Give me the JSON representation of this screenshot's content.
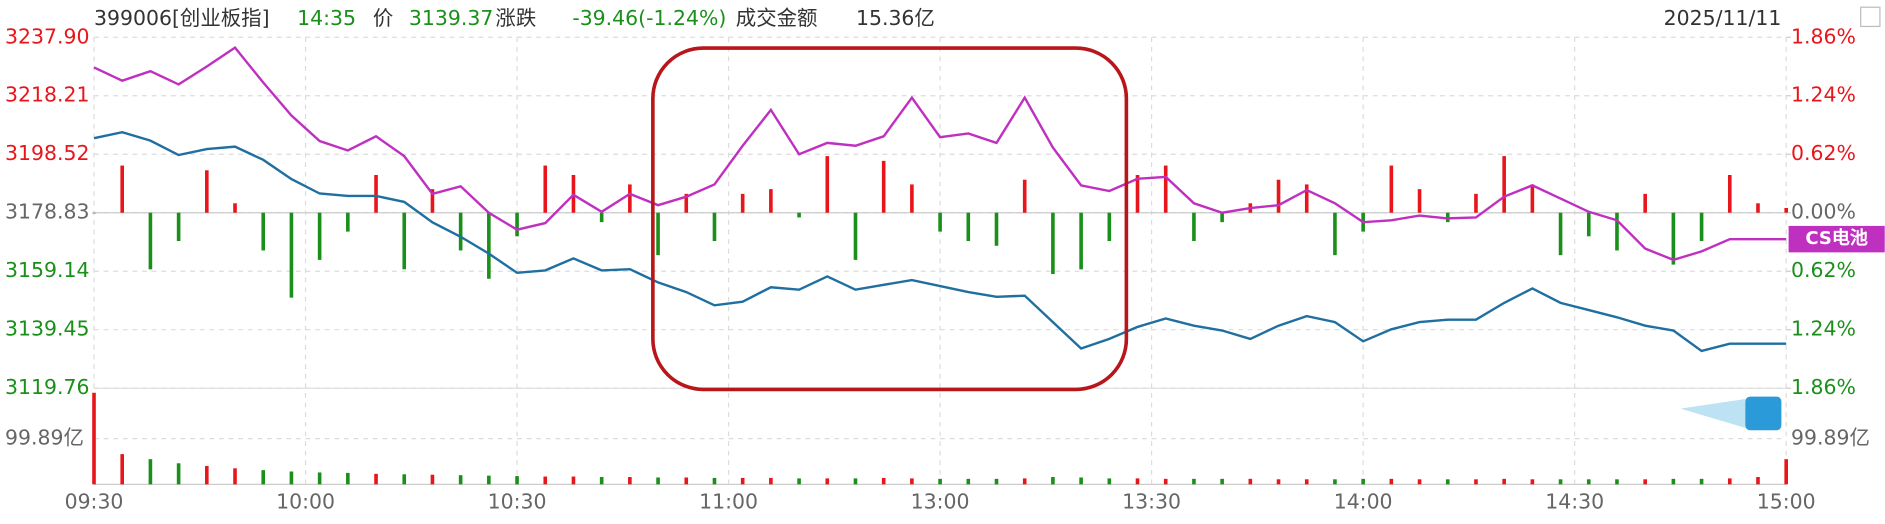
{
  "header": {
    "code": "399006[创业板指]",
    "time": "14:35",
    "price_label": "价",
    "price": "3139.37",
    "change_label": "涨跌",
    "change": "-39.46(-1.24%)",
    "amount_label": "成交金额",
    "amount": "15.36亿",
    "date": "2025/11/11"
  },
  "chart_data": {
    "type": "line",
    "x": [
      0,
      4,
      8,
      12,
      16,
      20,
      24,
      28,
      32,
      36,
      40,
      44,
      48,
      52,
      56,
      60,
      64,
      68,
      72,
      76,
      80,
      84,
      88,
      92,
      96,
      100,
      104,
      108,
      112,
      116,
      120,
      124,
      128,
      132,
      136,
      140,
      144,
      148,
      152,
      156,
      160,
      164,
      168,
      172,
      176,
      180,
      184,
      188,
      192,
      196,
      200,
      204,
      208,
      212,
      216,
      220,
      224,
      228,
      232,
      236,
      240
    ],
    "xlim": [
      0,
      240
    ],
    "xticks": [
      {
        "value": 0,
        "label": "09:30"
      },
      {
        "value": 30,
        "label": "10:00"
      },
      {
        "value": 60,
        "label": "10:30"
      },
      {
        "value": 90,
        "label": "11:00"
      },
      {
        "value": 120,
        "label": "13:00"
      },
      {
        "value": 150,
        "label": "13:30"
      },
      {
        "value": 180,
        "label": "14:00"
      },
      {
        "value": 210,
        "label": "14:30"
      },
      {
        "value": 240,
        "label": "15:00"
      }
    ],
    "ylim": [
      3119.76,
      3237.9
    ],
    "yticks": [
      {
        "value": 3237.9,
        "label": "3237.90"
      },
      3218.21,
      3198.52,
      3178.83,
      3159.14,
      3139.45,
      3119.76
    ],
    "y2lim": [
      -1.86,
      1.86
    ],
    "y2ticks": [
      {
        "value": 1.86,
        "label": "1.86%"
      },
      {
        "value": 1.24,
        "label": "1.24%"
      },
      {
        "value": 0.62,
        "label": "0.62%"
      },
      {
        "value": 0,
        "label": "0.00%"
      },
      {
        "value": -0.62,
        "label": "0.62%"
      },
      {
        "value": -1.24,
        "label": "1.24%"
      },
      {
        "value": -1.86,
        "label": "1.86%"
      }
    ],
    "grid": true,
    "series": [
      {
        "color": "#1f6fa0",
        "values": [
          3203.91,
          3205.94,
          3203.1,
          3198.25,
          3200.27,
          3201.08,
          3196.63,
          3190.16,
          3185.3,
          3184.49,
          3184.49,
          3182.47,
          3175.59,
          3170.74,
          3165.07,
          3158.6,
          3159.41,
          3163.45,
          3159.41,
          3159.81,
          3155.36,
          3152.12,
          3147.67,
          3148.89,
          3153.74,
          3152.93,
          3157.38,
          3152.93,
          3154.55,
          3156.17,
          3154.15,
          3152.12,
          3150.51,
          3150.91,
          3142.01,
          3133.11,
          3136.35,
          3140.39,
          3143.22,
          3140.8,
          3139.18,
          3136.35,
          3140.8,
          3144.03,
          3142.01,
          3135.54,
          3139.58,
          3142.01,
          3142.82,
          3142.82,
          3148.48,
          3153.34,
          3148.48,
          3146.06,
          3143.63,
          3140.8,
          3139.18,
          3132.3,
          3134.73,
          3134.73,
          3134.73
        ]
      },
      {
        "name": "CS电池",
        "color": "#c030c0",
        "axis": "y2",
        "values": [
          1.54,
          1.4,
          1.5,
          1.36,
          1.55,
          1.75,
          1.38,
          1.03,
          0.76,
          0.66,
          0.81,
          0.6,
          0.2,
          0.28,
          0,
          -0.18,
          -0.11,
          0.19,
          0.01,
          0.2,
          0.08,
          0.17,
          0.3,
          0.71,
          1.09,
          0.62,
          0.74,
          0.71,
          0.81,
          1.22,
          0.8,
          0.84,
          0.74,
          1.22,
          0.69,
          0.29,
          0.23,
          0.36,
          0.38,
          0.1,
          0,
          0.05,
          0.08,
          0.24,
          0.1,
          -0.1,
          -0.08,
          -0.03,
          -0.06,
          -0.05,
          0.17,
          0.29,
          0.15,
          0.01,
          -0.08,
          -0.38,
          -0.5,
          -0.41,
          -0.28,
          -0.28,
          -0.28
        ]
      }
    ],
    "bars": {
      "axis": "y2",
      "up_color": "#e8161b",
      "down_color": "#1a901a",
      "values": [
        0,
        0.5,
        -0.6,
        -0.3,
        0.45,
        0.1,
        -0.4,
        -0.9,
        -0.5,
        -0.2,
        0.4,
        -0.6,
        0.25,
        -0.4,
        -0.7,
        -0.25,
        0.5,
        0.4,
        -0.1,
        0.3,
        -0.45,
        0.2,
        -0.3,
        0.2,
        0.25,
        -0.05,
        0.6,
        -0.5,
        0.55,
        0.3,
        -0.2,
        -0.3,
        -0.35,
        0.35,
        -0.65,
        -0.6,
        -0.3,
        0.4,
        0.5,
        -0.3,
        -0.1,
        0.1,
        0.35,
        0.3,
        -0.45,
        -0.2,
        0.5,
        0.25,
        -0.1,
        0.2,
        0.6,
        0.3,
        -0.45,
        -0.25,
        -0.4,
        0.2,
        -0.55,
        -0.3,
        0.4,
        0.1,
        0.05
      ]
    },
    "volume": {
      "ylim": [
        0,
        210
      ],
      "yticks": [
        {
          "value": 99.89,
          "label": "99.89亿"
        }
      ],
      "values": [
        200,
        66,
        55,
        46,
        40,
        35,
        31,
        28,
        26,
        25,
        23,
        22,
        21,
        20,
        19,
        18,
        17,
        17,
        16,
        16,
        15,
        15,
        14,
        14,
        14,
        13,
        13,
        13,
        14,
        13,
        12,
        12,
        12,
        13,
        16,
        15,
        13,
        13,
        12,
        12,
        12,
        12,
        11,
        11,
        11,
        12,
        12,
        11,
        11,
        11,
        12,
        11,
        11,
        11,
        11,
        11,
        12,
        12,
        13,
        16,
        55
      ]
    }
  }
}
